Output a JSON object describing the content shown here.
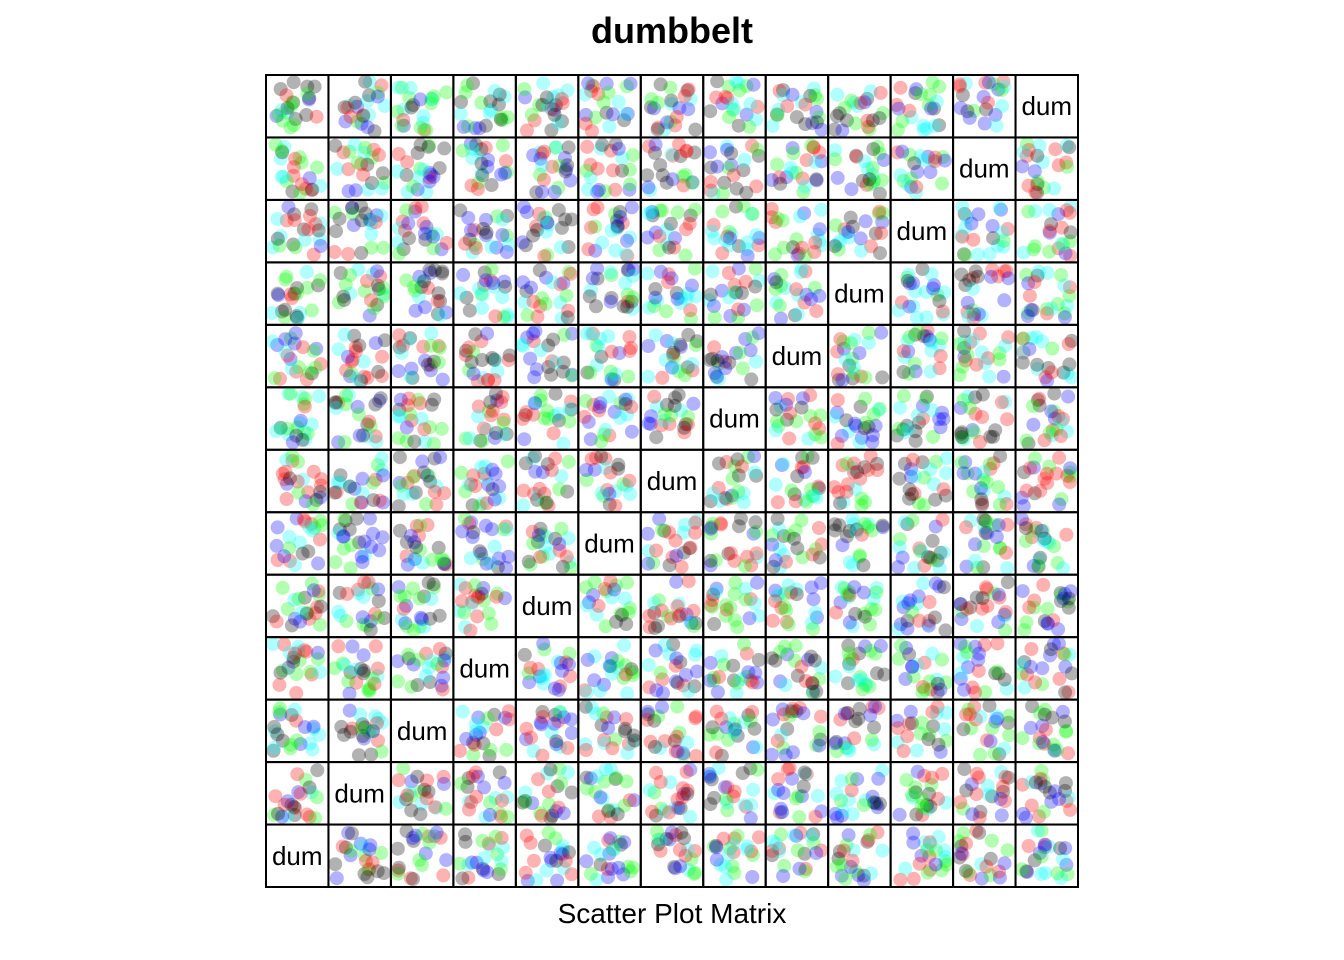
{
  "chart_data": {
    "type": "scatter",
    "title": "dumbbelt",
    "subtitle": "Scatter Plot Matrix",
    "layout": "splom",
    "grid_size": 13,
    "point_colors": [
      "#ff0000",
      "#00ff00",
      "#0000ff",
      "#00ffff",
      "#000000"
    ],
    "point_opacity": 0.3,
    "diagonal_labels": [
      "dum",
      "dum",
      "dum",
      "dum",
      "dum",
      "dum",
      "dum",
      "dum",
      "dum",
      "dum",
      "dum",
      "dum",
      "dum"
    ],
    "grid": false,
    "legend": "none"
  }
}
